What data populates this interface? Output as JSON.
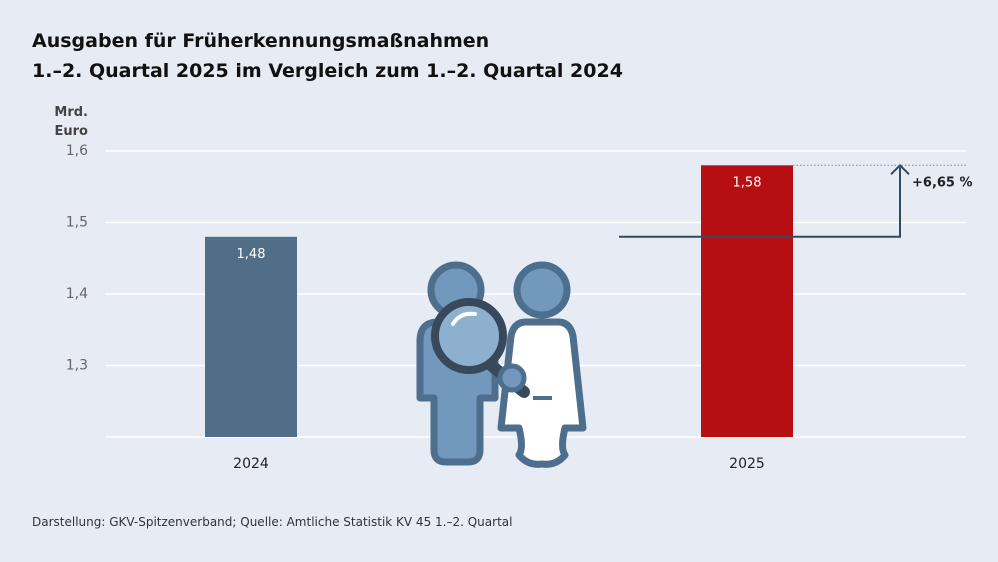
{
  "chart_data": {
    "type": "bar",
    "title": "Ausgaben für Früherkennungsmaßnahmen",
    "subtitle": "1.–2. Quartal 2025 im Vergleich zum 1.–2. Quartal 2024",
    "ylabel": "Mrd. Euro",
    "ylabel_lines": [
      "Mrd.",
      "Euro"
    ],
    "categories": [
      "2024",
      "2025"
    ],
    "values": [
      1.48,
      1.58
    ],
    "value_labels": [
      "1,48",
      "1,58"
    ],
    "bar_colors": [
      "#516e88",
      "#b50f14"
    ],
    "ylim": [
      1.2,
      1.6
    ],
    "yticks": [
      1.3,
      1.4,
      1.5,
      1.6
    ],
    "ytick_labels": [
      "1,3",
      "1,4",
      "1,5",
      "1,6"
    ],
    "grid": true,
    "annotation": {
      "text": "+6,65 %",
      "from_value": 1.48,
      "to_value": 1.58
    }
  },
  "footer": {
    "source": "Darstellung: GKV-Spitzenverband; Quelle: Amtliche Statistik KV 45 1.–2. Quartal"
  }
}
